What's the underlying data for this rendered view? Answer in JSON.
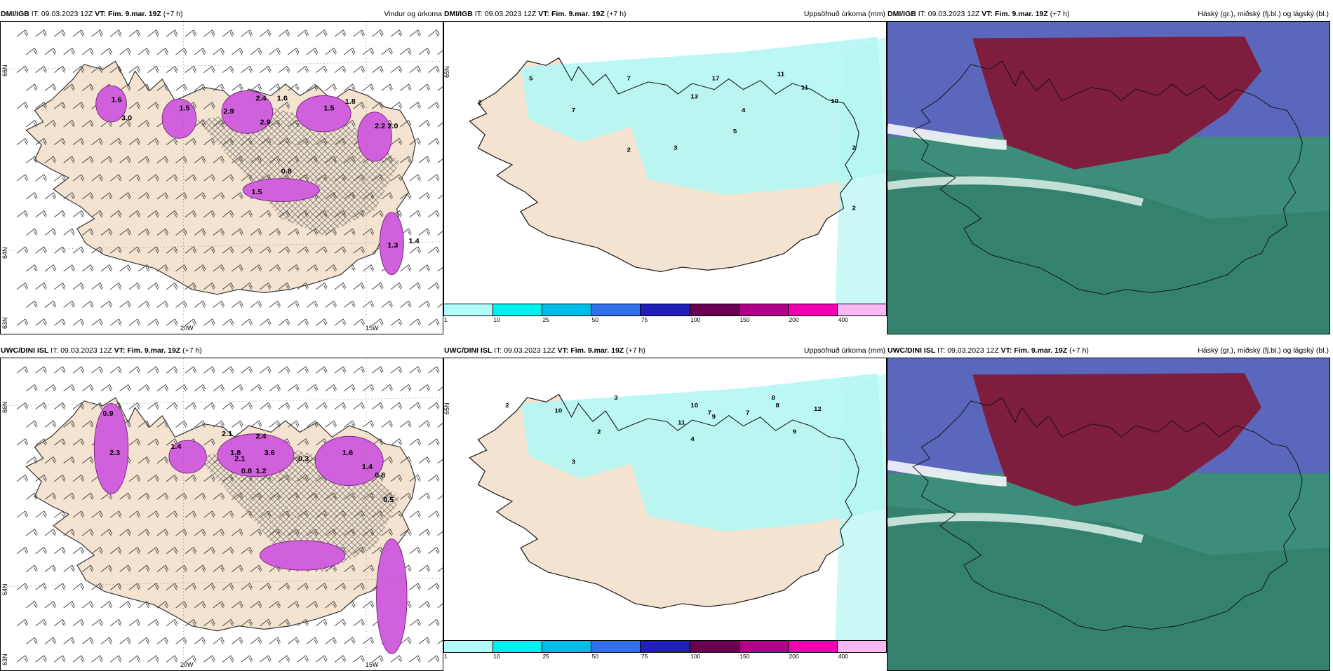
{
  "panels": [
    {
      "model": "DMI/IGB",
      "it_label": "IT:",
      "it": "09.03.2023 12Z",
      "vt_label": "VT:",
      "vt": "Fim. 9.mar. 19Z",
      "lead": "(+7 h)",
      "field": "Vindur og úrkoma",
      "lat_labels": [
        "66N",
        "64N",
        "63N"
      ],
      "lon_labels": [
        "20W",
        "15W"
      ]
    },
    {
      "model": "DMI/IGB",
      "it_label": "IT:",
      "it": "09.03.2023 12Z",
      "vt_label": "VT:",
      "vt": "Fim. 9.mar. 19Z",
      "lead": "(+7 h)",
      "field": "Uppsöfnuð úrkoma (mm)",
      "lat_labels": [
        "65N"
      ]
    },
    {
      "model": "DMI/IGB",
      "it_label": "IT:",
      "it": "09.03.2023 12Z",
      "vt_label": "VT:",
      "vt": "Fim. 9.mar. 19Z",
      "lead": "(+7 h)",
      "field": "Háský (gr.), miðský (fj.bl.) og lágský (bl.)"
    },
    {
      "model": "UWC/DINI ISL",
      "it_label": "IT:",
      "it": "09.03.2023 12Z",
      "vt_label": "VT:",
      "vt": "Fim. 9.mar. 19Z",
      "lead": "(+7 h)",
      "field": "",
      "lat_labels": [
        "66N",
        "64N",
        "63N"
      ],
      "lon_labels": [
        "20W",
        "15W"
      ]
    },
    {
      "model": "UWC/DINI ISL",
      "it_label": "IT:",
      "it": "09.03.2023 12Z",
      "vt_label": "VT:",
      "vt": "Fim. 9.mar. 19Z",
      "lead": "(+7 h)",
      "field": "Uppsöfnuð úrkoma (mm)",
      "lat_labels": [
        "65N"
      ]
    },
    {
      "model": "UWC/DINI ISL",
      "it_label": "IT:",
      "it": "09.03.2023 12Z",
      "vt_label": "VT:",
      "vt": "Fim. 9.mar. 19Z",
      "lead": "(+7 h)",
      "field": "Háský (gr.), miðský (fj.bl.) og lágský (bl.)"
    }
  ],
  "colorbar": {
    "ticks": [
      "1",
      "10",
      "25",
      "50",
      "75",
      "100",
      "150",
      "200",
      "400"
    ],
    "colors": [
      "#b2fbfb",
      "#00f0f0",
      "#00bde8",
      "#3070e8",
      "#2020b8",
      "#6a0050",
      "#b0008a",
      "#f000b0",
      "#f7b8f4"
    ]
  },
  "values": {
    "p0": [
      "1.6",
      "3.0",
      "1.5",
      "2.9",
      "2.4",
      "1.6",
      "2.9",
      "1.5",
      "1.8",
      "2.2",
      "2.0",
      "0.8",
      "1.5",
      "1.4",
      "1.3"
    ],
    "p1": [
      "5",
      "7",
      "17",
      "11",
      "13",
      "4",
      "11",
      "10",
      "5",
      "2",
      "2",
      "3",
      "2",
      "7",
      "2"
    ],
    "p3": [
      "0.9",
      "2.3",
      "1.4",
      "2.1",
      "1.8",
      "2.4",
      "3.6",
      "0.3",
      "1.6",
      "1.4",
      "0.8",
      "0.5",
      "1.2",
      "2.1",
      "0.8"
    ],
    "p4": [
      "2",
      "10",
      "3",
      "7",
      "2",
      "10",
      "11",
      "9",
      "8",
      "7",
      "4",
      "9",
      "8",
      "12",
      "3"
    ]
  },
  "colors": {
    "land": "#f3e3d0",
    "precip_purple": "#d060dc",
    "precip_cyan": "#b4f6f4",
    "cloud_high": "#7e1d3e",
    "cloud_mid": "#6060c8",
    "cloud_low": "#3c8e7a",
    "frame": "#000000"
  }
}
